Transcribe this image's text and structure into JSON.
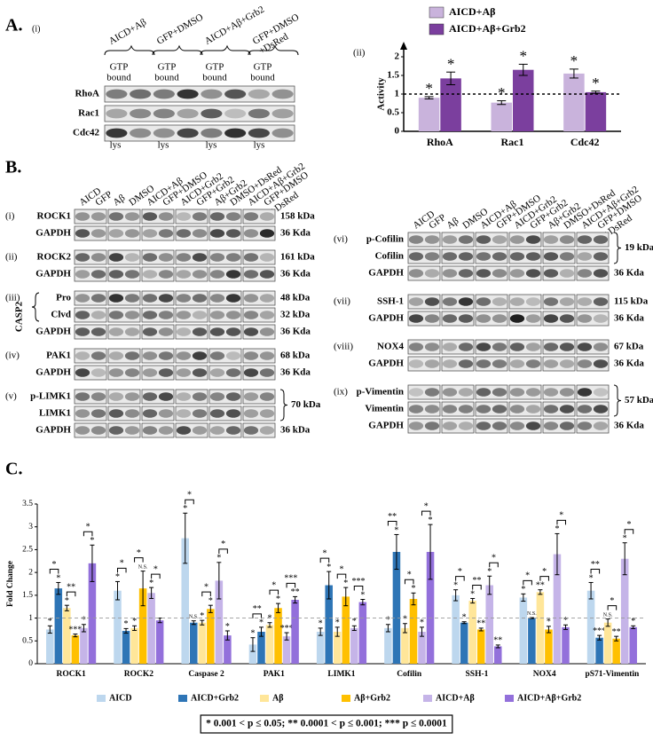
{
  "panel_a": {
    "label": "A.",
    "sub_i": "(i)",
    "sub_ii": "(ii)",
    "columns": [
      [
        "AICD+Aβ"
      ],
      [
        "GFP+DMSO"
      ],
      [
        "AICD+Aβ+Grb2"
      ],
      [
        "GFP+DMSO",
        "+DsRed"
      ]
    ],
    "gtp": [
      "GTP",
      "bound"
    ],
    "lys": "lys",
    "rows": [
      "RhoA",
      "Rac1",
      "Cdc42"
    ]
  },
  "panel_b": {
    "label": "B.",
    "columns": [
      [
        "AICD"
      ],
      [
        "GFP"
      ],
      [
        "Aβ"
      ],
      [
        "DMSO"
      ],
      [
        "AICD+Aβ"
      ],
      [
        "GFP+DMSO"
      ],
      [
        "AICD+Grb2"
      ],
      [
        "GFP+Grb2"
      ],
      [
        "Aβ+Grb2"
      ],
      [
        "DMSO+DsRed"
      ],
      [
        "AICD+Aβ+Grb2"
      ],
      [
        "GFP+DMSO",
        "+DsRed"
      ]
    ],
    "left": [
      {
        "roman": "(i)",
        "rows": [
          {
            "label": "ROCK1",
            "size": "158 kDa"
          },
          {
            "label": "GAPDH",
            "size": "36 Kda"
          }
        ]
      },
      {
        "roman": "(ii)",
        "rows": [
          {
            "label": "ROCK2",
            "size": "161 kDa"
          },
          {
            "label": "GAPDH",
            "size": "36 Kda"
          }
        ]
      },
      {
        "roman": "(iii)",
        "group_label": "CASP2",
        "rows": [
          {
            "label": "Pro",
            "size": "48 kDa"
          },
          {
            "label": "Clvd",
            "size": "32 kDa"
          },
          {
            "label": "GAPDH",
            "size": "36 Kda"
          }
        ]
      },
      {
        "roman": "(iv)",
        "rows": [
          {
            "label": "PAK1",
            "size": "68 kDa"
          },
          {
            "label": "GAPDH",
            "size": "36 Kda"
          }
        ]
      },
      {
        "roman": "(v)",
        "bracket_size": "70 kDa",
        "rows": [
          {
            "label": "p-LIMK1"
          },
          {
            "label": "LIMK1"
          },
          {
            "label": "GAPDH",
            "size": "36 kDa"
          }
        ]
      }
    ],
    "right": [
      {
        "roman": "(vi)",
        "bracket_size": "19 kDa",
        "rows": [
          {
            "label": "p-Cofilin"
          },
          {
            "label": "Cofilin"
          },
          {
            "label": "GAPDH",
            "size": "36 Kda"
          }
        ]
      },
      {
        "roman": "(vii)",
        "rows": [
          {
            "label": "SSH-1",
            "size": "115 kDa"
          },
          {
            "label": "GAPDH",
            "size": "36 Kda"
          }
        ]
      },
      {
        "roman": "(viii)",
        "rows": [
          {
            "label": "NOX4",
            "size": "67 kDa"
          },
          {
            "label": "GAPDH",
            "size": "36 Kda"
          }
        ]
      },
      {
        "roman": "(ix)",
        "bracket_size": "57 kDa",
        "rows": [
          {
            "label": "p-Vimentin"
          },
          {
            "label": "Vimentin"
          },
          {
            "label": "GAPDH",
            "size": "36 Kda"
          }
        ]
      }
    ]
  },
  "panel_c": {
    "label": "C."
  },
  "chart_data": [
    {
      "type": "bar",
      "y_label": "Activity",
      "categories": [
        "RhoA",
        "Rac1",
        "Cdc42"
      ],
      "series": [
        {
          "name": "AICD+Aβ",
          "color": "#c9b3dc",
          "values": [
            0.9,
            0.77,
            1.55
          ],
          "errors": [
            0.03,
            0.05,
            0.12
          ],
          "significance": [
            "*",
            "*",
            "*"
          ]
        },
        {
          "name": "AICD+Aβ+Grb2",
          "color": "#7b3f9e",
          "values": [
            1.42,
            1.65,
            1.05
          ],
          "errors": [
            0.17,
            0.15,
            0.03
          ],
          "significance": [
            "*",
            "*",
            "*"
          ]
        }
      ],
      "ylim": [
        0,
        2
      ],
      "yticks": [
        0,
        0.5,
        1,
        1.5,
        2
      ],
      "reference_line": 1,
      "legend": "top"
    },
    {
      "type": "bar",
      "y_label": "Fold Change",
      "categories": [
        "ROCK1",
        "ROCK2",
        "Caspase 2",
        "PAK1",
        "LIMK1",
        "Cofilin",
        "SSH-1",
        "NOX4",
        "pS71-Vimentin"
      ],
      "series": [
        {
          "name": "AICD",
          "color": "#bdd7ee",
          "values": [
            0.75,
            1.6,
            2.75,
            0.42,
            0.7,
            0.78,
            1.5,
            1.45,
            1.6
          ],
          "errors": [
            0.08,
            0.2,
            0.55,
            0.15,
            0.08,
            0.08,
            0.12,
            0.08,
            0.18
          ],
          "significance": [
            "*",
            "*",
            "*",
            "*",
            "*",
            "*",
            "*",
            "*",
            "*"
          ]
        },
        {
          "name": "AICD+Grb2",
          "color": "#2e75b6",
          "values": [
            1.65,
            0.72,
            0.9,
            0.7,
            1.72,
            2.45,
            0.9,
            1.0,
            0.57
          ],
          "errors": [
            0.13,
            0.05,
            0.04,
            0.1,
            0.3,
            0.38,
            0.02,
            0.01,
            0.05
          ],
          "significance": [
            "*",
            "*",
            "N.S.",
            "*",
            "*",
            "*",
            "*",
            "N.S.",
            "***"
          ]
        },
        {
          "name": "Aβ",
          "color": "#ffe699",
          "values": [
            1.22,
            0.78,
            0.9,
            0.85,
            0.7,
            0.78,
            1.38,
            1.57,
            0.9
          ],
          "errors": [
            0.06,
            0.05,
            0.05,
            0.05,
            0.1,
            0.1,
            0.05,
            0.05,
            0.08
          ],
          "significance": [
            "*",
            "*",
            "*",
            "*",
            "*",
            "*",
            "*",
            "**",
            "N.S."
          ]
        },
        {
          "name": "Aβ+Grb2",
          "color": "#ffc000",
          "values": [
            0.62,
            1.65,
            1.2,
            1.22,
            1.47,
            1.42,
            0.75,
            0.75,
            0.55
          ],
          "errors": [
            0.03,
            0.38,
            0.08,
            0.1,
            0.2,
            0.13,
            0.03,
            0.07,
            0.05
          ],
          "significance": [
            "***",
            "N.S.",
            "*",
            "*",
            "*",
            "*",
            "**",
            "*",
            "**"
          ]
        },
        {
          "name": "AICD+Aβ",
          "color": "#c5b4e8",
          "values": [
            0.78,
            1.55,
            1.82,
            0.6,
            0.78,
            0.7,
            1.72,
            2.4,
            2.3
          ],
          "errors": [
            0.08,
            0.12,
            0.4,
            0.08,
            0.05,
            0.1,
            0.2,
            0.45,
            0.35
          ],
          "significance": [
            "*",
            "*",
            "*",
            "***",
            "*",
            "*",
            "*",
            "*",
            "*"
          ]
        },
        {
          "name": "AICD+Aβ+Grb2",
          "color": "#9370db",
          "values": [
            2.2,
            0.95,
            0.62,
            1.4,
            1.35,
            2.45,
            0.38,
            0.8,
            0.8
          ],
          "errors": [
            0.4,
            0.05,
            0.1,
            0.07,
            0.06,
            0.6,
            0.03,
            0.05,
            0.03
          ],
          "significance": [
            "*",
            null,
            "*",
            "**",
            "*",
            "*",
            "**",
            "*",
            "*"
          ]
        }
      ],
      "pair_significance": [
        [
          "*",
          "**",
          "*"
        ],
        [
          "*",
          "*",
          "*"
        ],
        [
          "*",
          "*",
          "*"
        ],
        [
          "**",
          "*",
          "***"
        ],
        [
          "*",
          "*",
          "***"
        ],
        [
          "**",
          "*",
          "*"
        ],
        [
          "*",
          "**",
          "*"
        ],
        [
          "*",
          "*",
          "*"
        ],
        [
          "**",
          "*",
          "*"
        ]
      ],
      "ylim": [
        0,
        3.5
      ],
      "yticks": [
        0,
        0.5,
        1,
        1.5,
        2,
        2.5,
        3,
        3.5
      ],
      "reference_line": 1,
      "legend": "bottom",
      "note": "* 0.001 < p ≤ 0.05; ** 0.0001 < p ≤ 0.001; *** p ≤ 0.0001"
    }
  ]
}
